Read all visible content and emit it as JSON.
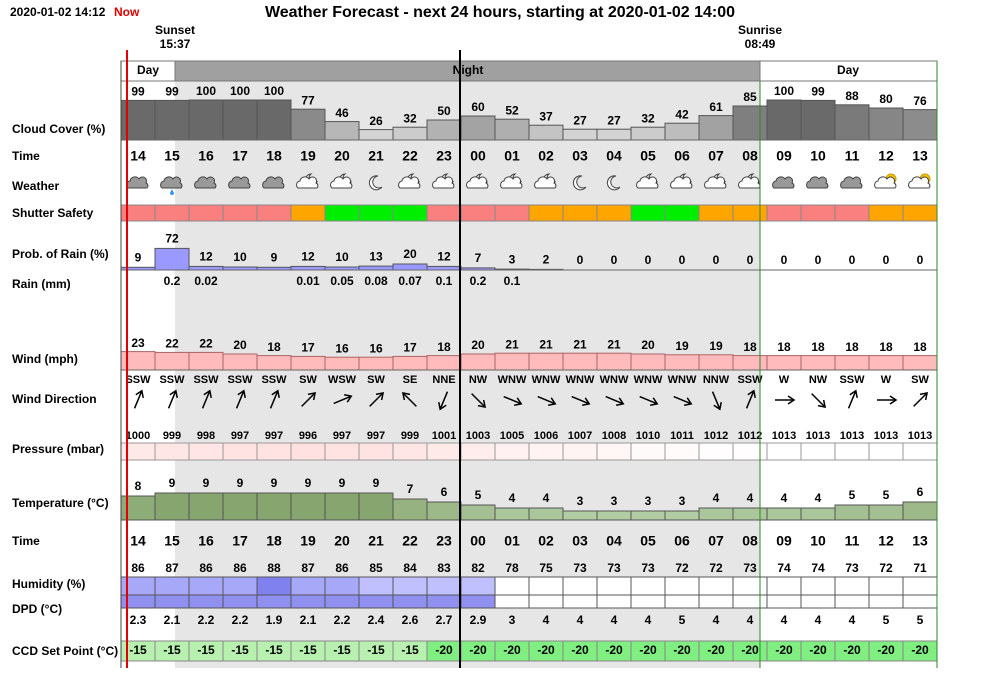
{
  "header": {
    "datetime": "2020-01-02 14:12",
    "now": "Now",
    "title": "Weather Forecast - next 24 hours, starting at 2020-01-02 14:00"
  },
  "sunset": {
    "label": "Sunset",
    "time": "15:37"
  },
  "sunrise": {
    "label": "Sunrise",
    "time": "08:49"
  },
  "periods": [
    "Day",
    "Night",
    "Day"
  ],
  "row_labels": {
    "cloud_cover": "Cloud Cover (%)",
    "time": "Time",
    "weather": "Weather",
    "shutter_safety": "Shutter Safety",
    "rain_probability": "Prob. of Rain (%)",
    "rain_mm": "Rain (mm)",
    "wind_mph": "Wind (mph)",
    "wind_direction": "Wind Direction",
    "pressure": "Pressure (mbar)",
    "temperature": "Temperature (°C)",
    "time_2": "Time",
    "humidity": "Humidity (%)",
    "dpd": "DPD (°C)",
    "ccd_set_point": "CCD Set Point (°C)"
  },
  "hours": [
    "14",
    "15",
    "16",
    "17",
    "18",
    "19",
    "20",
    "21",
    "22",
    "23",
    "00",
    "01",
    "02",
    "03",
    "04",
    "05",
    "06",
    "07",
    "08",
    "09",
    "10",
    "11",
    "12",
    "13"
  ],
  "cloud_cover": [
    99,
    99,
    100,
    100,
    100,
    77,
    46,
    26,
    32,
    50,
    60,
    52,
    37,
    27,
    27,
    32,
    42,
    61,
    85,
    100,
    99,
    88,
    80,
    76
  ],
  "shutter_safety_colors": [
    "#fa8080",
    "#fa8080",
    "#fa8080",
    "#fa8080",
    "#fa8080",
    "#ffa500",
    "#00ee00",
    "#00ee00",
    "#00ee00",
    "#fa8080",
    "#fa8080",
    "#fa8080",
    "#ffa500",
    "#ffa500",
    "#ffa500",
    "#00ee00",
    "#00ee00",
    "#ffa500",
    "#ffa500",
    "#fa8080",
    "#fa8080",
    "#fa8080",
    "#ffa500",
    "#ffa500"
  ],
  "rain_probability": [
    9,
    72,
    12,
    10,
    9,
    12,
    10,
    13,
    20,
    12,
    7,
    3,
    2,
    0,
    0,
    0,
    0,
    0,
    0,
    0,
    0,
    0,
    0,
    0
  ],
  "rain_mm": [
    null,
    0.2,
    0.02,
    null,
    null,
    0.01,
    0.05,
    0.08,
    0.07,
    0.1,
    0.2,
    0.1,
    null,
    null,
    null,
    null,
    null,
    null,
    null,
    null,
    null,
    null,
    null,
    null
  ],
  "wind_mph": [
    23,
    22,
    22,
    20,
    18,
    17,
    16,
    16,
    17,
    18,
    20,
    21,
    21,
    21,
    21,
    20,
    19,
    19,
    18,
    18,
    18,
    18,
    18,
    18
  ],
  "wind_direction": [
    "SSW",
    "SSW",
    "SSW",
    "SSW",
    "SSW",
    "SW",
    "WSW",
    "SW",
    "SE",
    "NNE",
    "NW",
    "WNW",
    "WNW",
    "WNW",
    "WNW",
    "WNW",
    "WNW",
    "NNW",
    "SSW",
    "W",
    "NW",
    "SSW",
    "W",
    "SW"
  ],
  "pressure": [
    1000,
    999,
    998,
    997,
    997,
    996,
    997,
    997,
    999,
    1001,
    1003,
    1005,
    1006,
    1007,
    1008,
    1010,
    1011,
    1012,
    1012,
    1013,
    1013,
    1013,
    1013,
    1013
  ],
  "temperature": [
    8,
    9,
    9,
    9,
    9,
    9,
    9,
    9,
    7,
    6,
    5,
    4,
    4,
    3,
    3,
    3,
    3,
    4,
    4,
    4,
    4,
    5,
    5,
    6
  ],
  "humidity": [
    86,
    87,
    86,
    86,
    88,
    87,
    86,
    85,
    84,
    83,
    82,
    78,
    75,
    73,
    73,
    73,
    72,
    72,
    73,
    74,
    74,
    73,
    72,
    71
  ],
  "dpd": [
    2.3,
    2.1,
    2.2,
    2.2,
    1.9,
    2.1,
    2.2,
    2.4,
    2.6,
    2.7,
    2.9,
    3,
    4,
    4,
    4,
    4,
    5,
    4,
    4,
    4,
    4,
    4,
    5,
    5
  ],
  "ccd_set_point": [
    -15,
    -15,
    -15,
    -15,
    -15,
    -15,
    -15,
    -15,
    -15,
    -20,
    -20,
    -20,
    -20,
    -20,
    -20,
    -20,
    -20,
    -20,
    -20,
    -20,
    -20,
    -20,
    -20,
    -20
  ]
}
